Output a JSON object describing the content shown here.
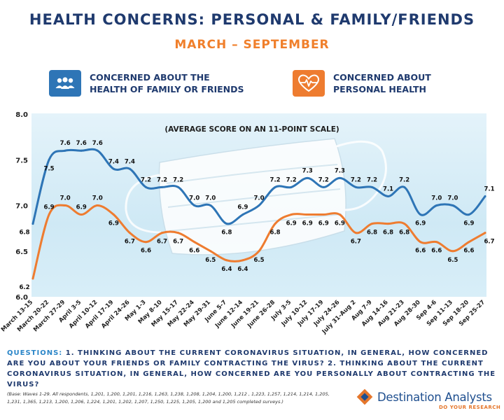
{
  "header": {
    "title": "HEALTH CONCERNS: PERSONAL & FAMILY/FRIENDS",
    "subtitle": "MARCH – SEPTEMBER"
  },
  "legend": {
    "family": {
      "label": "CONCERNED ABOUT THE\nHEALTH OF FAMILY OR FRIENDS",
      "icon": "people-icon",
      "color": "#2e75b6"
    },
    "personal": {
      "label": "CONCERNED ABOUT\nPERSONAL HEALTH",
      "icon": "heart-pulse-icon",
      "color": "#ee7c30"
    }
  },
  "chart_data": {
    "type": "line",
    "annotation": "(AVERAGE SCORE ON AN 11-POINT SCALE)",
    "ylim": [
      6.0,
      8.0
    ],
    "yticks": [
      "6.0",
      "6.5",
      "7.0",
      "7.5",
      "8.0"
    ],
    "grid": false,
    "categories": [
      "March 13-15",
      "March 20-22",
      "March 27-29",
      "April 3-5",
      "April 10-12",
      "April 17-19",
      "April 24-26",
      "May 1-3",
      "May 8-10",
      "May 15-17",
      "May 22-24",
      "May 29-31",
      "June 5-7",
      "June 12-14",
      "June 19-21",
      "June 26-28",
      "July 3-5",
      "July 10-12",
      "July 17-19",
      "July 24-26",
      "July 31-Aug 2",
      "Aug 7-9",
      "Aug 14-16",
      "Aug 21-23",
      "Aug 28-30",
      "Sep 4-6",
      "Sep 11-13",
      "Sep 18-20",
      "Sep 25-27"
    ],
    "series": [
      {
        "name": "CONCERNED ABOUT THE HEALTH OF FAMILY OR FRIENDS",
        "color": "#2e75b6",
        "values": [
          6.8,
          7.5,
          7.6,
          7.6,
          7.6,
          7.4,
          7.4,
          7.2,
          7.2,
          7.2,
          7.0,
          7.0,
          6.8,
          6.9,
          7.0,
          7.2,
          7.2,
          7.3,
          7.2,
          7.3,
          7.2,
          7.2,
          7.1,
          7.2,
          6.9,
          7.0,
          7.0,
          6.9,
          7.1
        ],
        "labels": [
          "6.8",
          "7.5",
          "7.6",
          "7.6",
          "7.6",
          "7.4",
          "7.4",
          "7.2",
          "7.2",
          "7.2",
          "7.0",
          "7.0",
          "6.8",
          "6.9",
          "7.0",
          "7.2",
          "7.2",
          "7.3",
          "7.2",
          "7.3",
          "7.2",
          "7.2",
          "7.1",
          "7.2",
          "6.9",
          "7.0",
          "7.0",
          "6.9",
          "7.1"
        ]
      },
      {
        "name": "CONCERNED ABOUT PERSONAL HEALTH",
        "color": "#ee7c30",
        "values": [
          6.2,
          6.9,
          7.0,
          6.9,
          7.0,
          6.9,
          6.7,
          6.6,
          6.7,
          6.7,
          6.6,
          6.5,
          6.4,
          6.4,
          6.5,
          6.8,
          6.9,
          6.9,
          6.9,
          6.9,
          6.7,
          6.8,
          6.8,
          6.8,
          6.6,
          6.6,
          6.5,
          6.6,
          6.7
        ],
        "labels": [
          "6.2",
          "6.9",
          "7.0",
          "6.9",
          "7.0",
          "6.9",
          "6.7",
          "6.6",
          "6.7",
          "6.7",
          "6.6",
          "6.5",
          "6.4",
          "6.4",
          "6.5",
          "6.8",
          "6.9",
          "6.9",
          "6.9",
          "6.9",
          "6.7",
          "6.8",
          "6.8",
          "6.8",
          "6.6",
          "6.6",
          "6.5",
          "6.6",
          "6.7"
        ]
      }
    ]
  },
  "footer": {
    "questions_prefix": "QUESTIONS:",
    "questions_text": " 1. THINKING ABOUT THE CURRENT CORONAVIRUS SITUATION, IN GENERAL, HOW CONCERNED ARE YOU ABOUT YOUR FRIENDS OR FAMILY CONTRACTING THE VIRUS? 2. THINKING ABOUT THE CURRENT CORONAVIRUS SITUATION, IN GENERAL, HOW CONCERNED ARE YOU PERSONALLY ABOUT CONTRACTING THE VIRUS?",
    "base_note": "(Base: Waves 1-29. All respondents, 1,201, 1,200, 1,201, 1,216, 1,263, 1,238, 1,208, 1,204, 1,200, 1,212 , 1,223, 1,257, 1,214, 1,214, 1,205, 1,231, 1,365, 1,213, 1,200, 1,206, 1,224, 1,201, 1,202, 1,207, 1,250, 1,225, 1,205, 1,200 and 1,205 completed surveys.)"
  },
  "logo": {
    "name": "Destination Analysts",
    "tagline": "DO YOUR RESEARCH",
    "icon": "diamond-logo-icon"
  }
}
